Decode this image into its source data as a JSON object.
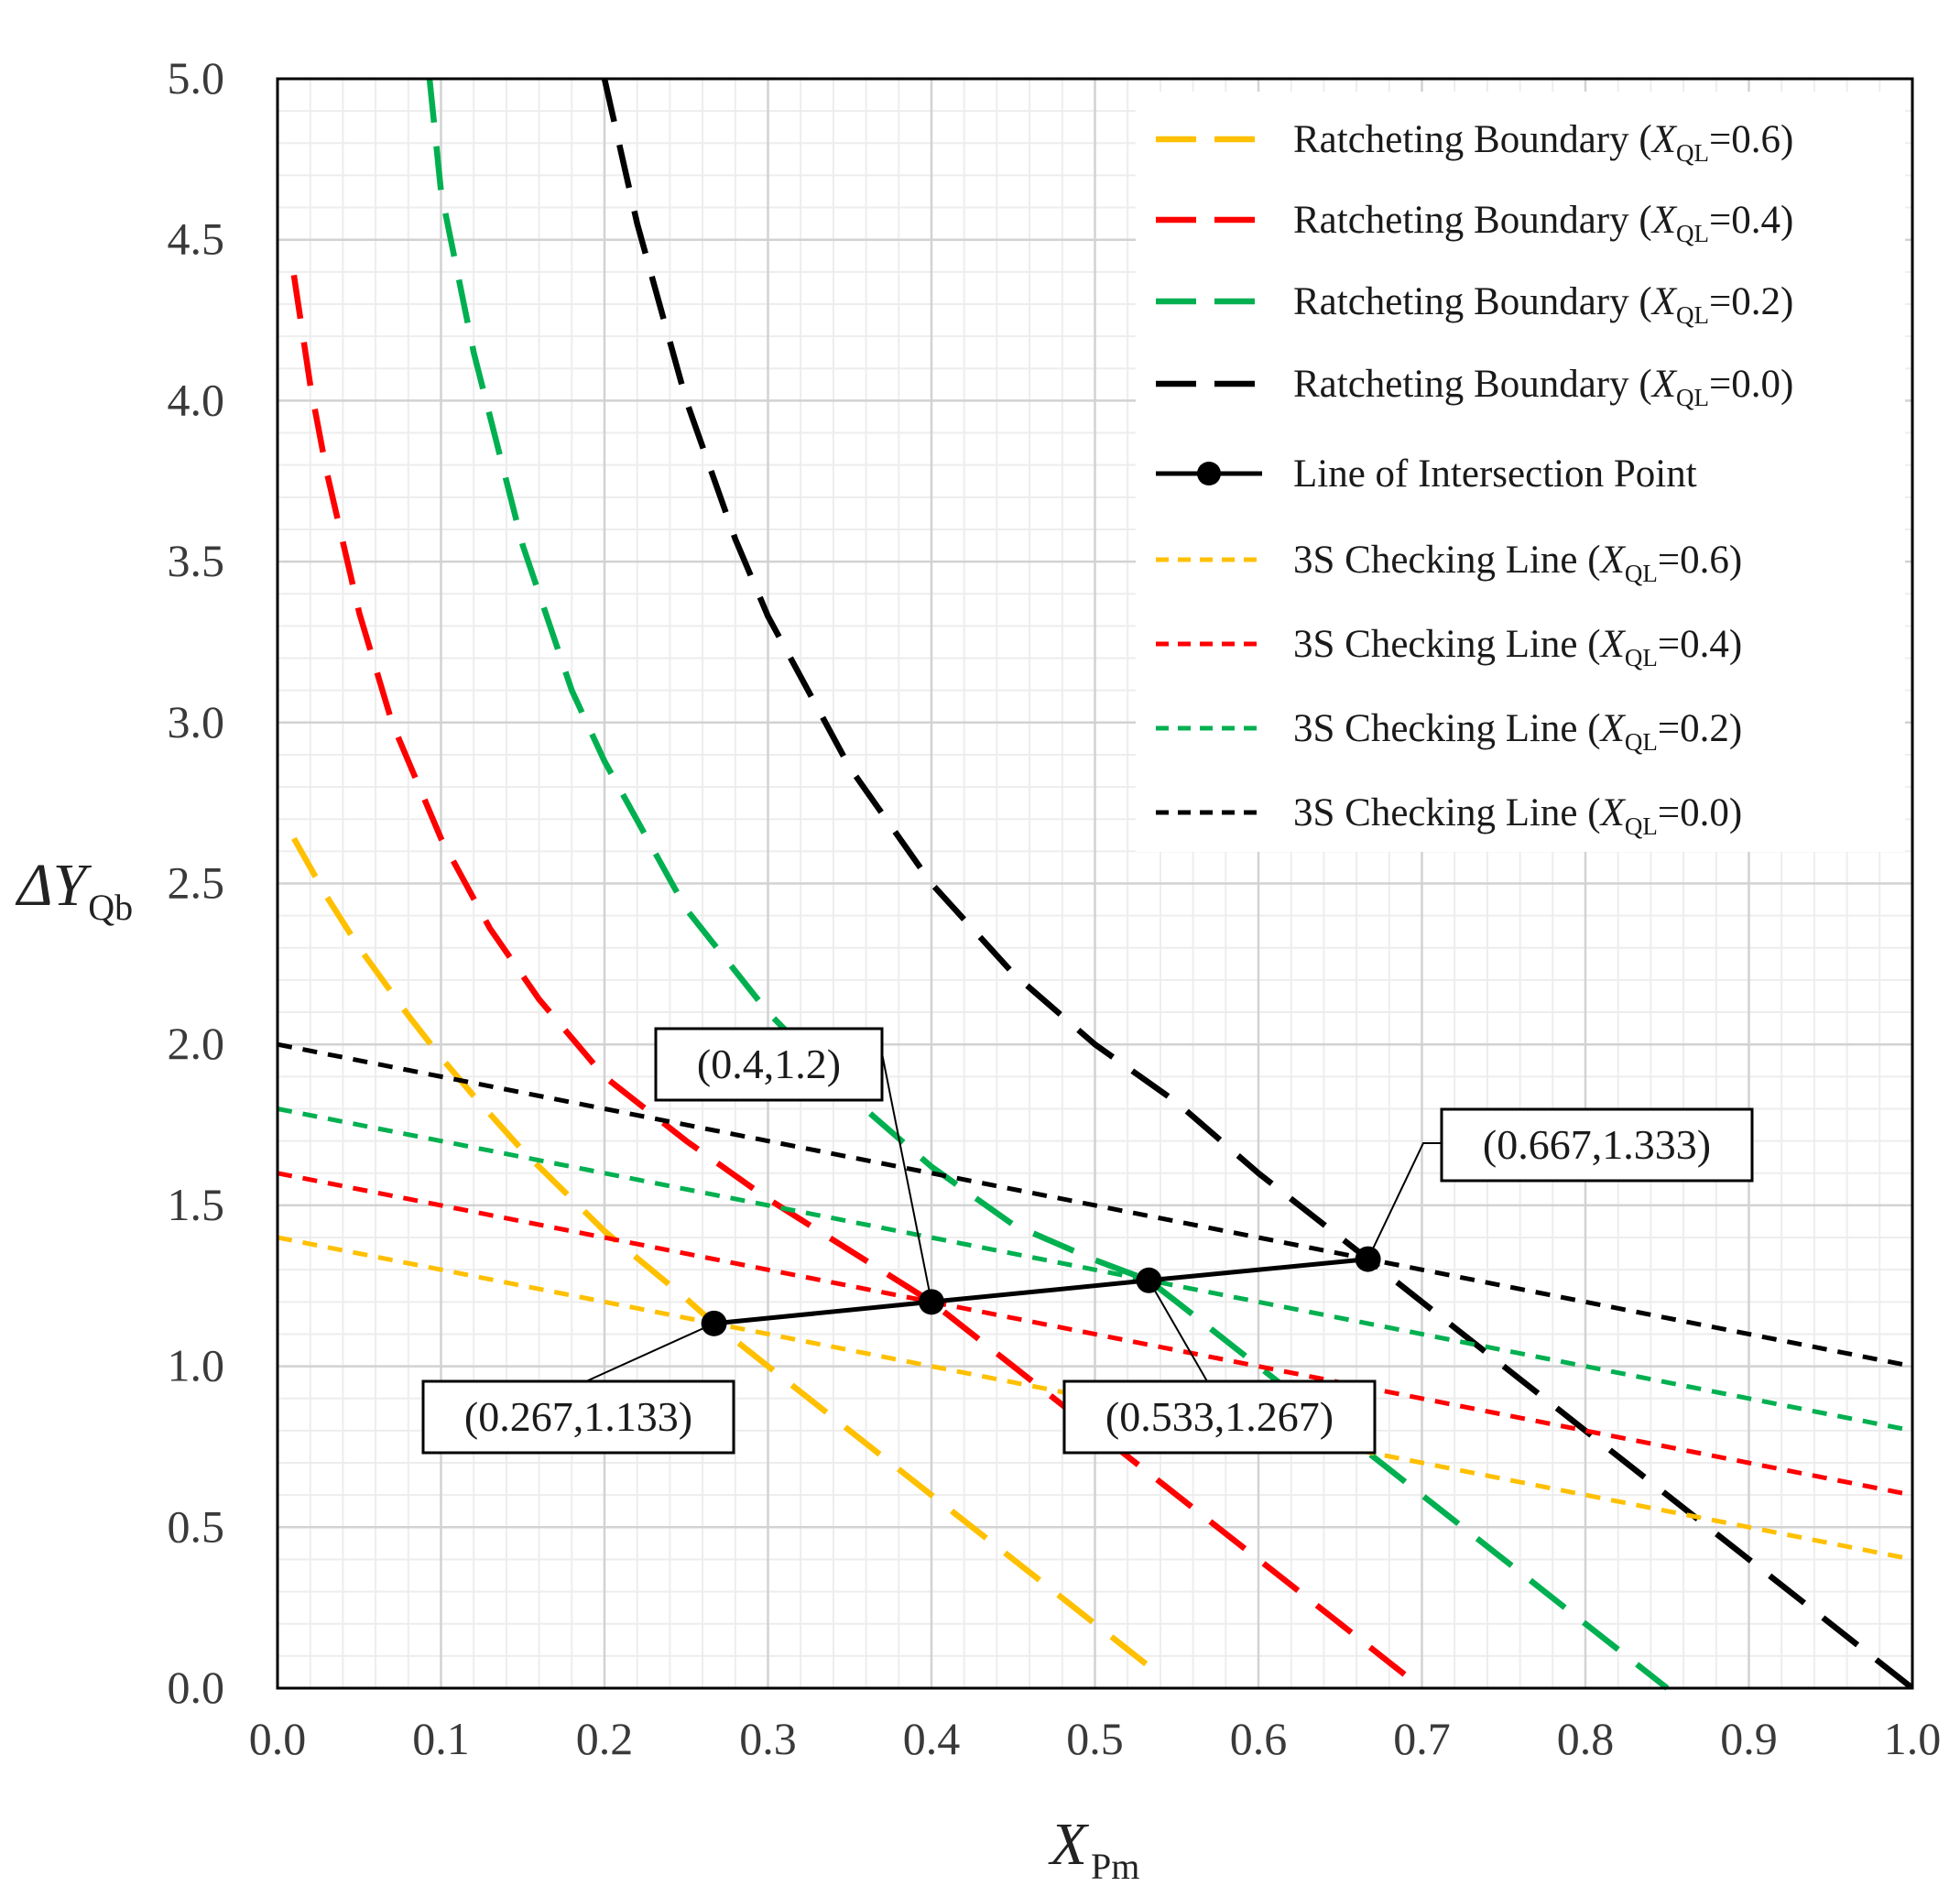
{
  "chart_data": {
    "type": "line",
    "title": "",
    "xlabel": {
      "main": "X",
      "sub": "Pm"
    },
    "ylabel": {
      "prefix": "ΔY",
      "sub": "Qb"
    },
    "xlim": [
      0.0,
      1.0
    ],
    "ylim": [
      0.0,
      5.0
    ],
    "x_ticks": [
      "0.0",
      "0.1",
      "0.2",
      "0.3",
      "0.4",
      "0.5",
      "0.6",
      "0.7",
      "0.8",
      "0.9",
      "1.0"
    ],
    "y_ticks": [
      "0.0",
      "0.5",
      "1.0",
      "1.5",
      "2.0",
      "2.5",
      "3.0",
      "3.5",
      "4.0",
      "4.5",
      "5.0"
    ],
    "grid": true,
    "legend_position": "top-right",
    "series": [
      {
        "name": "Ratcheting Boundary (XQL=0.6)",
        "label_main": "Ratcheting Boundary (",
        "label_var": "X",
        "label_sub": "QL",
        "label_tail": "=0.6)",
        "color": "#FFC000",
        "style": "long-dash",
        "x": [
          0.01,
          0.02,
          0.03,
          0.05,
          0.08,
          0.1,
          0.12,
          0.15,
          0.2,
          0.25,
          0.267,
          0.3,
          0.35,
          0.4,
          0.45,
          0.5,
          0.54
        ],
        "y": [
          2.64,
          2.55,
          2.46,
          2.3,
          2.09,
          1.96,
          1.84,
          1.67,
          1.42,
          1.21,
          1.133,
          1.0,
          0.8,
          0.6,
          0.4,
          0.2,
          0.04
        ]
      },
      {
        "name": "Ratcheting Boundary (XQL=0.4)",
        "label_main": "Ratcheting Boundary (",
        "label_var": "X",
        "label_sub": "QL",
        "label_tail": "=0.4)",
        "color": "#FF0000",
        "style": "long-dash",
        "x": [
          0.01,
          0.02,
          0.03,
          0.05,
          0.07,
          0.1,
          0.13,
          0.16,
          0.2,
          0.25,
          0.3,
          0.35,
          0.4,
          0.45,
          0.5,
          0.55,
          0.6,
          0.65,
          0.7
        ],
        "y": [
          4.39,
          4.05,
          3.78,
          3.34,
          3.0,
          2.64,
          2.36,
          2.14,
          1.9,
          1.7,
          1.52,
          1.36,
          1.2,
          1.0,
          0.8,
          0.6,
          0.4,
          0.2,
          0.0
        ]
      },
      {
        "name": "Ratcheting Boundary (XQL=0.2)",
        "label_main": "Ratcheting Boundary (",
        "label_var": "X",
        "label_sub": "QL",
        "label_tail": "=0.2)",
        "color": "#00B050",
        "style": "long-dash",
        "x": [
          0.093,
          0.1,
          0.12,
          0.15,
          0.18,
          0.2,
          0.25,
          0.3,
          0.35,
          0.4,
          0.45,
          0.5,
          0.533,
          0.55,
          0.6,
          0.65,
          0.7,
          0.75,
          0.8,
          0.85
        ],
        "y": [
          5.0,
          4.65,
          4.15,
          3.55,
          3.1,
          2.88,
          2.42,
          2.1,
          1.84,
          1.62,
          1.44,
          1.33,
          1.267,
          1.2,
          1.0,
          0.8,
          0.6,
          0.4,
          0.2,
          0.0
        ]
      },
      {
        "name": "Ratcheting Boundary (XQL=0.0)",
        "label_main": "Ratcheting Boundary (",
        "label_var": "X",
        "label_sub": "QL",
        "label_tail": "=0.0)",
        "color": "#000000",
        "style": "long-dash",
        "x": [
          0.2,
          0.22,
          0.25,
          0.28,
          0.3,
          0.35,
          0.4,
          0.45,
          0.5,
          0.55,
          0.6,
          0.667,
          0.7,
          0.75,
          0.8,
          0.85,
          0.9,
          0.95,
          1.0
        ],
        "y": [
          5.0,
          4.55,
          4.0,
          3.57,
          3.33,
          2.86,
          2.5,
          2.22,
          2.0,
          1.82,
          1.6,
          1.333,
          1.2,
          1.0,
          0.8,
          0.6,
          0.4,
          0.2,
          0.0
        ]
      },
      {
        "name": "Line of Intersection Point",
        "label_main": "Line of Intersection Point",
        "label_var": "",
        "label_sub": "",
        "label_tail": "",
        "color": "#000000",
        "style": "solid-marker",
        "x": [
          0.267,
          0.4,
          0.533,
          0.667
        ],
        "y": [
          1.133,
          1.2,
          1.267,
          1.333
        ]
      },
      {
        "name": "3S Checking Line (XQL=0.6)",
        "label_main": "3S Checking Line (",
        "label_var": "X",
        "label_sub": "QL",
        "label_tail": "=0.6)",
        "color": "#FFC000",
        "style": "short-dash",
        "x": [
          0.0,
          1.0
        ],
        "y": [
          1.4,
          0.4
        ]
      },
      {
        "name": "3S Checking Line (XQL=0.4)",
        "label_main": "3S Checking Line (",
        "label_var": "X",
        "label_sub": "QL",
        "label_tail": "=0.4)",
        "color": "#FF0000",
        "style": "short-dash",
        "x": [
          0.0,
          1.0
        ],
        "y": [
          1.6,
          0.6
        ]
      },
      {
        "name": "3S Checking Line (XQL=0.2)",
        "label_main": "3S Checking Line (",
        "label_var": "X",
        "label_sub": "QL",
        "label_tail": "=0.2)",
        "color": "#00B050",
        "style": "short-dash",
        "x": [
          0.0,
          1.0
        ],
        "y": [
          1.8,
          0.8
        ]
      },
      {
        "name": "3S Checking Line (XQL=0.0)",
        "label_main": "3S Checking Line (",
        "label_var": "X",
        "label_sub": "QL",
        "label_tail": "=0.0)",
        "color": "#000000",
        "style": "short-dash",
        "x": [
          0.0,
          1.0
        ],
        "y": [
          2.0,
          1.0
        ]
      }
    ],
    "annotations": [
      {
        "text": "(0.267,1.133)",
        "point": [
          0.267,
          1.133
        ],
        "box_anchor": "below-left"
      },
      {
        "text": "(0.4,1.2)",
        "point": [
          0.4,
          1.2
        ],
        "box_anchor": "above-left"
      },
      {
        "text": "(0.533,1.267)",
        "point": [
          0.533,
          1.267
        ],
        "box_anchor": "below-right"
      },
      {
        "text": "(0.667,1.333)",
        "point": [
          0.667,
          1.333
        ],
        "box_anchor": "above-right"
      }
    ]
  }
}
